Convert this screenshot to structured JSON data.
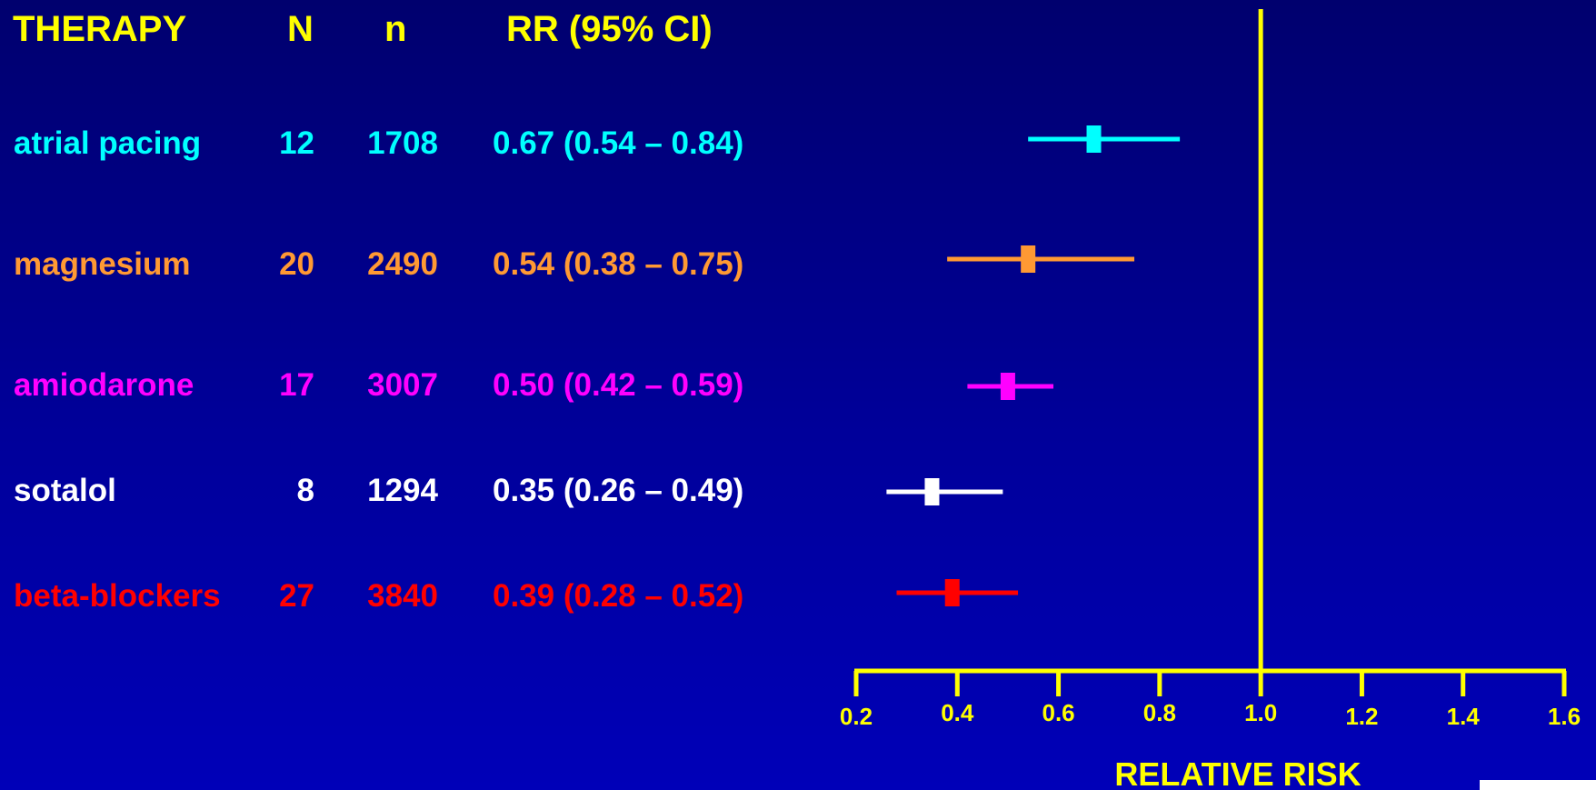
{
  "table": {
    "headers": {
      "therapy": "THERAPY",
      "N": "N",
      "n": "n",
      "rr": "RR (95% CI)"
    },
    "rows": [
      {
        "therapy": "atrial pacing",
        "N": "12",
        "n": "1708",
        "rr": "0.67 (0.54 – 0.84)",
        "color": "#00ffff"
      },
      {
        "therapy": "magnesium",
        "N": "20",
        "n": "2490",
        "rr": "0.54 (0.38 – 0.75)",
        "color": "#ff9933"
      },
      {
        "therapy": "amiodarone",
        "N": "17",
        "n": "3007",
        "rr": "0.50 (0.42 – 0.59)",
        "color": "#ff00ff"
      },
      {
        "therapy": "sotalol",
        "N": "8",
        "n": "1294",
        "rr": "0.35 (0.26 – 0.49)",
        "color": "#ffffff"
      },
      {
        "therapy": "beta-blockers",
        "N": "27",
        "n": "3840",
        "rr": "0.39 (0.28 – 0.52)",
        "color": "#ff0000"
      }
    ]
  },
  "chart_data": {
    "type": "forest",
    "xlabel": "RELATIVE RISK",
    "xlim": [
      0.2,
      1.6
    ],
    "ticks": [
      0.2,
      0.4,
      0.6,
      0.8,
      1.0,
      1.2,
      1.4,
      1.6
    ],
    "tick_labels": [
      "0.2",
      "0.4",
      "0.6",
      "0.8",
      "1.0",
      "1.2",
      "1.4",
      "1.6"
    ],
    "reference_line": 1.0,
    "series": [
      {
        "name": "atrial pacing",
        "estimate": 0.67,
        "lower": 0.54,
        "upper": 0.84,
        "color": "#00ffff"
      },
      {
        "name": "magnesium",
        "estimate": 0.54,
        "lower": 0.38,
        "upper": 0.75,
        "color": "#ff9933"
      },
      {
        "name": "amiodarone",
        "estimate": 0.5,
        "lower": 0.42,
        "upper": 0.59,
        "color": "#ff00ff"
      },
      {
        "name": "sotalol",
        "estimate": 0.35,
        "lower": 0.26,
        "upper": 0.49,
        "color": "#ffffff"
      },
      {
        "name": "beta-blockers",
        "estimate": 0.39,
        "lower": 0.28,
        "upper": 0.52,
        "color": "#ff0000"
      }
    ],
    "axis_color": "#ffff00",
    "background_color": "#00009a"
  }
}
